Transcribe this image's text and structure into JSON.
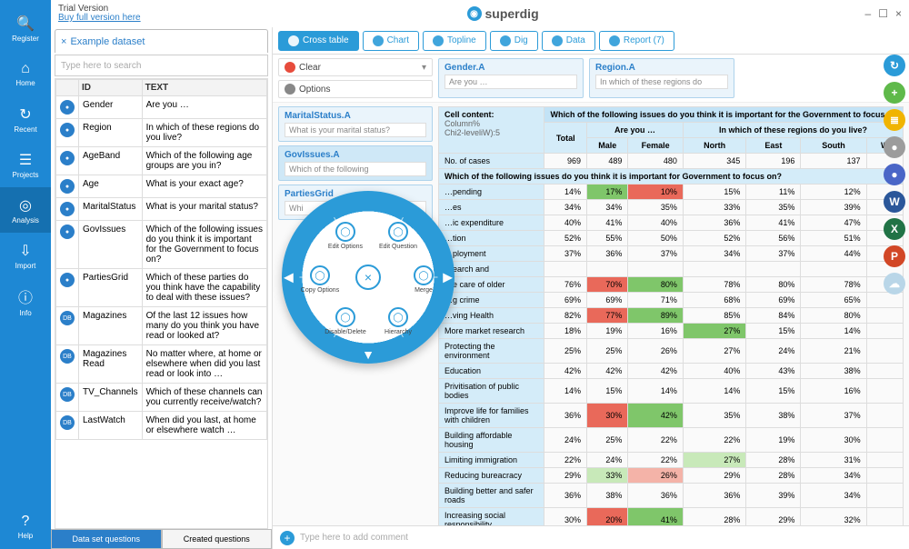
{
  "brand": {
    "name": "superdig",
    "logo_glyph": "◉"
  },
  "window": {
    "minimize": "–",
    "maximize": "☐",
    "close": "×"
  },
  "trial": {
    "line1": "Trial Version",
    "line2": "Buy full version here"
  },
  "rail": {
    "items": [
      {
        "label": "Register",
        "glyph": "🔍",
        "active": false
      },
      {
        "label": "Home",
        "glyph": "⌂",
        "active": false
      },
      {
        "label": "Recent",
        "glyph": "↻",
        "active": false
      },
      {
        "label": "Projects",
        "glyph": "☰",
        "active": false
      },
      {
        "label": "Analysis",
        "glyph": "◎",
        "active": true
      },
      {
        "label": "Import",
        "glyph": "⇩",
        "active": false
      },
      {
        "label": "Info",
        "glyph": "ⓘ",
        "active": false
      }
    ],
    "help": {
      "label": "Help",
      "glyph": "?"
    }
  },
  "dataset": {
    "tab_label": "Example dataset",
    "tab_close": "×",
    "search_placeholder": "Type here to search",
    "columns": {
      "icon": "",
      "id": "ID",
      "text": "TEXT"
    },
    "rows": [
      {
        "ico": "●",
        "id": "Gender",
        "text": "Are you …"
      },
      {
        "ico": "●",
        "id": "Region",
        "text": "In which of these regions do you live?"
      },
      {
        "ico": "●",
        "id": "AgeBand",
        "text": "Which of the following age groups are you in?"
      },
      {
        "ico": "●",
        "id": "Age",
        "text": "What is your exact age?"
      },
      {
        "ico": "●",
        "id": "MaritalStatus",
        "text": "What is your marital status?"
      },
      {
        "ico": "●",
        "id": "GovIssues",
        "text": "Which of the following issues do you think it is important for the Government to focus on?"
      },
      {
        "ico": "●",
        "id": "PartiesGrid",
        "text": "Which of these parties do you think have the capability to deal with these issues?"
      },
      {
        "ico": "DB",
        "id": "Magazines",
        "text": "Of the last 12 issues how many do you think you have read or looked at?"
      },
      {
        "ico": "DB",
        "id": "Magazines Read",
        "text": "No matter where, at home or elsewhere when did you last read or look into …"
      },
      {
        "ico": "DB",
        "id": "TV_Channels",
        "text": "Which of these channels can you currently receive/watch?"
      },
      {
        "ico": "DB",
        "id": "LastWatch",
        "text": "When did you last, at home or elsewhere watch …"
      }
    ],
    "bottom_tabs": {
      "a": "Data set questions",
      "b": "Created questions"
    }
  },
  "analysis_tabs": [
    {
      "label": "Cross table",
      "active": true
    },
    {
      "label": "Chart"
    },
    {
      "label": "Topline"
    },
    {
      "label": "Dig"
    },
    {
      "label": "Data"
    },
    {
      "label": "Report (7)"
    }
  ],
  "config": {
    "clear": "Clear",
    "options": "Options",
    "side_cards": [
      {
        "title": "MaritalStatus.A",
        "sub": "What is your marital status?"
      },
      {
        "title": "GovIssues.A",
        "sub": "Which of the following",
        "hl": true
      },
      {
        "title": "PartiesGrid",
        "sub": "Whi"
      }
    ],
    "top_cards": [
      {
        "title": "Gender.A",
        "sub": "Are you …"
      },
      {
        "title": "Region.A",
        "sub": "In which of these regions do"
      }
    ]
  },
  "crosstable": {
    "content_label": "Cell content:",
    "content_lines": [
      "Column%",
      "Chi2-leveliW):5"
    ],
    "superheader": "Which of the following issues do you think it is important for the Government to focus on",
    "header_groups": [
      {
        "label": "Are you …",
        "cols": [
          "Male",
          "Female"
        ]
      },
      {
        "label": "In which of these regions do you live?",
        "cols": [
          "North",
          "East",
          "South",
          "W"
        ]
      }
    ],
    "total_label": "Total",
    "ncases_label": "No. of cases",
    "ncases": {
      "total": 969,
      "cols": [
        489,
        480,
        345,
        196,
        137,
        ""
      ]
    },
    "section_head": "Which of the following issues do you think it is important for Government to focus on?",
    "rows": [
      {
        "label": "…pending",
        "total": "14%",
        "vals": [
          [
            "17%",
            "green"
          ],
          [
            "10%",
            "red"
          ],
          [
            "15%",
            ""
          ],
          [
            "11%",
            ""
          ],
          [
            "12%",
            ""
          ],
          [
            "",
            ""
          ]
        ]
      },
      {
        "label": "…es",
        "total": "34%",
        "vals": [
          [
            "34%",
            ""
          ],
          [
            "35%",
            ""
          ],
          [
            "33%",
            ""
          ],
          [
            "35%",
            ""
          ],
          [
            "39%",
            ""
          ],
          [
            "",
            ""
          ]
        ]
      },
      {
        "label": "…ic expenditure",
        "total": "40%",
        "vals": [
          [
            "41%",
            ""
          ],
          [
            "40%",
            ""
          ],
          [
            "36%",
            ""
          ],
          [
            "41%",
            ""
          ],
          [
            "47%",
            ""
          ],
          [
            "",
            ""
          ]
        ]
      },
      {
        "label": "…tion",
        "total": "52%",
        "vals": [
          [
            "55%",
            ""
          ],
          [
            "50%",
            ""
          ],
          [
            "52%",
            ""
          ],
          [
            "56%",
            ""
          ],
          [
            "51%",
            ""
          ],
          [
            "",
            ""
          ]
        ]
      },
      {
        "label": "…ployment",
        "total": "37%",
        "vals": [
          [
            "36%",
            ""
          ],
          [
            "37%",
            ""
          ],
          [
            "34%",
            ""
          ],
          [
            "37%",
            ""
          ],
          [
            "44%",
            ""
          ],
          [
            "",
            ""
          ]
        ]
      },
      {
        "label": "…earch and",
        "total": "",
        "vals": [
          [
            "",
            ""
          ],
          [
            "",
            ""
          ],
          [
            "",
            ""
          ],
          [
            "",
            ""
          ],
          [
            "",
            ""
          ],
          [
            "",
            ""
          ]
        ]
      },
      {
        "label": "…e care of older",
        "total": "76%",
        "vals": [
          [
            "70%",
            "red"
          ],
          [
            "80%",
            "green"
          ],
          [
            "78%",
            ""
          ],
          [
            "80%",
            ""
          ],
          [
            "78%",
            ""
          ],
          [
            "",
            ""
          ]
        ]
      },
      {
        "label": "…g crime",
        "total": "69%",
        "vals": [
          [
            "69%",
            ""
          ],
          [
            "71%",
            ""
          ],
          [
            "68%",
            ""
          ],
          [
            "69%",
            ""
          ],
          [
            "65%",
            ""
          ],
          [
            "",
            ""
          ]
        ]
      },
      {
        "label": "…ving Health",
        "total": "82%",
        "vals": [
          [
            "77%",
            "red"
          ],
          [
            "89%",
            "green"
          ],
          [
            "85%",
            ""
          ],
          [
            "84%",
            ""
          ],
          [
            "80%",
            ""
          ],
          [
            "",
            ""
          ]
        ]
      },
      {
        "label": "More market research",
        "total": "18%",
        "vals": [
          [
            "19%",
            ""
          ],
          [
            "16%",
            ""
          ],
          [
            "27%",
            "green"
          ],
          [
            "15%",
            ""
          ],
          [
            "14%",
            ""
          ],
          [
            "",
            ""
          ]
        ]
      },
      {
        "label": "Protecting the environment",
        "total": "25%",
        "vals": [
          [
            "25%",
            ""
          ],
          [
            "26%",
            ""
          ],
          [
            "27%",
            ""
          ],
          [
            "24%",
            ""
          ],
          [
            "21%",
            ""
          ],
          [
            "",
            ""
          ]
        ]
      },
      {
        "label": "Education",
        "total": "42%",
        "vals": [
          [
            "42%",
            ""
          ],
          [
            "42%",
            ""
          ],
          [
            "40%",
            ""
          ],
          [
            "43%",
            ""
          ],
          [
            "38%",
            ""
          ],
          [
            "",
            ""
          ]
        ]
      },
      {
        "label": "Privitisation of public bodies",
        "total": "14%",
        "vals": [
          [
            "15%",
            ""
          ],
          [
            "14%",
            ""
          ],
          [
            "14%",
            ""
          ],
          [
            "15%",
            ""
          ],
          [
            "16%",
            ""
          ],
          [
            "",
            ""
          ]
        ]
      },
      {
        "label": "Improve life for families with children",
        "total": "36%",
        "vals": [
          [
            "30%",
            "red"
          ],
          [
            "42%",
            "green"
          ],
          [
            "35%",
            ""
          ],
          [
            "38%",
            ""
          ],
          [
            "37%",
            ""
          ],
          [
            "",
            ""
          ]
        ]
      },
      {
        "label": "Building affordable housing",
        "total": "24%",
        "vals": [
          [
            "25%",
            ""
          ],
          [
            "22%",
            ""
          ],
          [
            "22%",
            ""
          ],
          [
            "19%",
            ""
          ],
          [
            "30%",
            ""
          ],
          [
            "",
            ""
          ]
        ]
      },
      {
        "label": "Limiting immigration",
        "total": "22%",
        "vals": [
          [
            "24%",
            ""
          ],
          [
            "22%",
            ""
          ],
          [
            "27%",
            "ltgreen"
          ],
          [
            "28%",
            ""
          ],
          [
            "31%",
            ""
          ],
          [
            "",
            ""
          ]
        ]
      },
      {
        "label": "Reducing bureacracy",
        "total": "29%",
        "vals": [
          [
            "33%",
            "ltgreen"
          ],
          [
            "26%",
            "ltred"
          ],
          [
            "29%",
            ""
          ],
          [
            "28%",
            ""
          ],
          [
            "34%",
            ""
          ],
          [
            "",
            ""
          ]
        ]
      },
      {
        "label": "Building better and safer roads",
        "total": "36%",
        "vals": [
          [
            "38%",
            ""
          ],
          [
            "36%",
            ""
          ],
          [
            "36%",
            ""
          ],
          [
            "39%",
            ""
          ],
          [
            "34%",
            ""
          ],
          [
            "",
            ""
          ]
        ]
      },
      {
        "label": "Increasing social responsibility",
        "total": "30%",
        "vals": [
          [
            "20%",
            "red"
          ],
          [
            "41%",
            "green"
          ],
          [
            "28%",
            ""
          ],
          [
            "29%",
            ""
          ],
          [
            "32%",
            ""
          ],
          [
            "",
            ""
          ]
        ]
      }
    ]
  },
  "right_rail": [
    {
      "glyph": "↻",
      "bg": "#2b9bd8"
    },
    {
      "glyph": "+",
      "bg": "#5fb94a"
    },
    {
      "glyph": "≣",
      "bg": "#f0b400"
    },
    {
      "glyph": "●",
      "bg": "#9c9c9c"
    },
    {
      "glyph": "●",
      "bg": "#4a66c7"
    },
    {
      "glyph": "W",
      "bg": "#2b579a"
    },
    {
      "glyph": "X",
      "bg": "#217346"
    },
    {
      "glyph": "P",
      "bg": "#d24726"
    },
    {
      "glyph": "☁",
      "bg": "#b9d6e8"
    }
  ],
  "comment": {
    "placeholder": "Type here to add comment"
  },
  "radial": {
    "close": "×",
    "options": [
      {
        "label": "Edit Options",
        "pos": "tl"
      },
      {
        "label": "Edit Question",
        "pos": "tr"
      },
      {
        "label": "Copy Options",
        "pos": "l"
      },
      {
        "label": "Merge",
        "pos": "r"
      },
      {
        "label": "Disable/Delete",
        "pos": "bl"
      },
      {
        "label": "Hierarchy",
        "pos": "br"
      }
    ]
  },
  "colors": {
    "brand_blue": "#2b9bd8",
    "rail_blue": "#1e88d4",
    "cell_header": "#d4ecf9",
    "hi_green": "#7fc66a",
    "hi_red": "#e9695a"
  }
}
